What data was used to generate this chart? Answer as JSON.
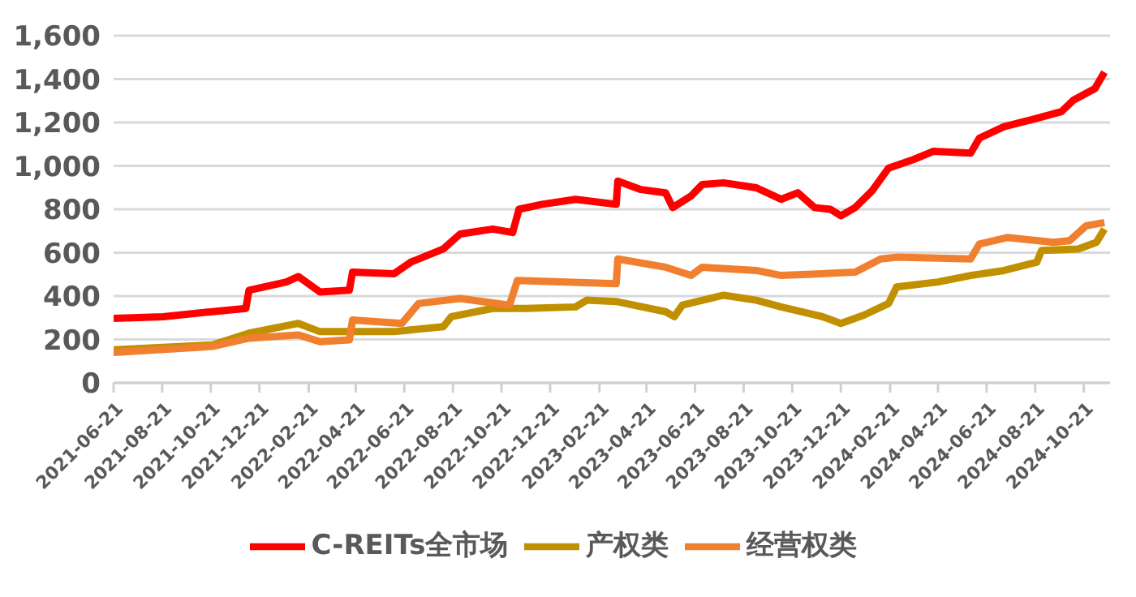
{
  "chart_data": {
    "type": "line",
    "grid": "y",
    "legend": "bottom",
    "marker": "none",
    "line_style": "solid",
    "xlim": [
      "2021-06-21",
      "2024-11-23"
    ],
    "xticks": [
      "2021-06-21",
      "2021-08-21",
      "2021-10-21",
      "2021-12-21",
      "2022-02-21",
      "2022-04-21",
      "2022-06-21",
      "2022-08-21",
      "2022-10-21",
      "2022-12-21",
      "2023-02-21",
      "2023-04-21",
      "2023-06-21",
      "2023-08-21",
      "2023-10-21",
      "2023-12-21",
      "2024-02-21",
      "2024-04-21",
      "2024-06-21",
      "2024-08-21",
      "2024-10-21"
    ],
    "ylim": [
      0,
      1600
    ],
    "yticks": [
      {
        "value": 0,
        "label": "0"
      },
      {
        "value": 200,
        "label": "200"
      },
      {
        "value": 400,
        "label": "400"
      },
      {
        "value": 600,
        "label": "600"
      },
      {
        "value": 800,
        "label": "800"
      },
      {
        "value": 1000,
        "label": "1,000"
      },
      {
        "value": 1200,
        "label": "1,200"
      },
      {
        "value": 1400,
        "label": "1,400"
      },
      {
        "value": 1600,
        "label": "1,600"
      }
    ],
    "series": [
      {
        "name": "C-REITs全市场",
        "color": "#ff0000",
        "x": [
          "2021-06-21",
          "2021-08-22",
          "2021-10-23",
          "2021-12-04",
          "2021-12-08",
          "2022-01-24",
          "2022-02-08",
          "2022-03-07",
          "2022-04-13",
          "2022-04-17",
          "2022-06-08",
          "2022-06-29",
          "2022-08-09",
          "2022-08-30",
          "2022-10-10",
          "2022-11-04",
          "2022-11-12",
          "2022-12-11",
          "2023-01-22",
          "2023-03-14",
          "2023-03-16",
          "2023-04-14",
          "2023-05-15",
          "2023-05-24",
          "2023-06-16",
          "2023-06-30",
          "2023-07-27",
          "2023-09-06",
          "2023-10-07",
          "2023-10-28",
          "2023-11-18",
          "2023-12-08",
          "2023-12-21",
          "2024-01-08",
          "2024-01-29",
          "2024-02-19",
          "2024-03-21",
          "2024-04-15",
          "2024-06-01",
          "2024-06-12",
          "2024-07-13",
          "2024-08-23",
          "2024-09-23",
          "2024-10-08",
          "2024-11-04",
          "2024-11-16"
        ],
        "values": [
          297,
          305,
          328,
          343,
          427,
          465,
          490,
          419,
          427,
          510,
          503,
          556,
          617,
          686,
          709,
          693,
          800,
          823,
          846,
          823,
          930,
          891,
          876,
          808,
          861,
          914,
          922,
          899,
          846,
          876,
          808,
          800,
          770,
          808,
          884,
          990,
          1029,
          1067,
          1059,
          1128,
          1181,
          1219,
          1250,
          1303,
          1356,
          1432
        ]
      },
      {
        "name": "产权类",
        "color": "#c09000",
        "x": [
          "2021-06-21",
          "2021-10-23",
          "2021-12-08",
          "2022-02-08",
          "2022-03-07",
          "2022-06-08",
          "2022-08-09",
          "2022-08-19",
          "2022-10-10",
          "2022-11-21",
          "2023-01-22",
          "2023-02-05",
          "2023-03-14",
          "2023-05-15",
          "2023-05-26",
          "2023-06-05",
          "2023-07-27",
          "2023-09-06",
          "2023-10-07",
          "2023-11-28",
          "2023-12-21",
          "2024-01-19",
          "2024-02-19",
          "2024-02-29",
          "2024-04-21",
          "2024-06-01",
          "2024-07-13",
          "2024-08-23",
          "2024-08-29",
          "2024-10-14",
          "2024-11-06",
          "2024-11-16"
        ],
        "values": [
          152,
          175,
          229,
          274,
          236,
          236,
          259,
          305,
          343,
          343,
          350,
          381,
          375,
          328,
          305,
          358,
          404,
          381,
          350,
          305,
          274,
          312,
          366,
          442,
          465,
          495,
          518,
          556,
          610,
          617,
          648,
          709
        ]
      },
      {
        "name": "经营权类",
        "color": "#f08030",
        "x": [
          "2021-06-21",
          "2021-10-23",
          "2021-12-08",
          "2022-02-08",
          "2022-03-07",
          "2022-04-13",
          "2022-04-17",
          "2022-06-18",
          "2022-07-09",
          "2022-08-30",
          "2022-10-31",
          "2022-11-10",
          "2023-03-14",
          "2023-03-16",
          "2023-05-15",
          "2023-06-16",
          "2023-06-30",
          "2023-09-06",
          "2023-10-07",
          "2023-11-28",
          "2024-01-08",
          "2024-02-09",
          "2024-02-29",
          "2024-06-01",
          "2024-06-12",
          "2024-07-17",
          "2024-09-13",
          "2024-10-03",
          "2024-10-24",
          "2024-11-16"
        ],
        "values": [
          140,
          168,
          206,
          221,
          190,
          198,
          290,
          274,
          366,
          389,
          358,
          472,
          457,
          571,
          533,
          495,
          533,
          518,
          495,
          503,
          510,
          571,
          579,
          571,
          640,
          670,
          648,
          655,
          724,
          739
        ]
      }
    ]
  }
}
